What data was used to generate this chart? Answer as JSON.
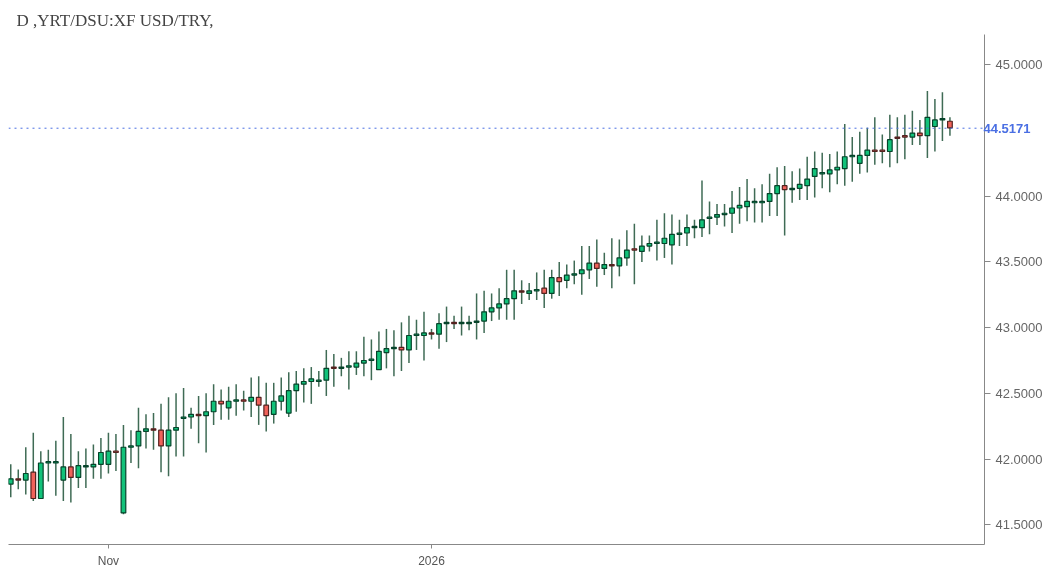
{
  "chart_data": {
    "type": "candlestick",
    "title": "D ,YRT/DSU:XF USD/TRY,",
    "categories": [
      null,
      null,
      null,
      null,
      null,
      null,
      null,
      null,
      null,
      null,
      null,
      null,
      null,
      "Nov",
      null,
      null,
      null,
      null,
      null,
      null,
      null,
      null,
      null,
      null,
      null,
      null,
      null,
      null,
      null,
      null,
      null,
      null,
      null,
      null,
      null,
      null,
      null,
      null,
      null,
      null,
      null,
      null,
      null,
      null,
      null,
      null,
      null,
      null,
      null,
      null,
      null,
      null,
      null,
      null,
      null,
      null,
      "2026",
      null,
      null,
      null,
      null,
      null,
      null,
      null,
      null,
      null,
      null,
      null,
      null,
      null,
      null,
      null,
      null,
      null,
      null,
      null,
      null,
      null,
      null,
      null,
      null,
      null,
      null,
      null,
      null,
      null,
      null,
      null,
      null,
      null,
      null,
      null,
      null,
      null,
      null,
      null,
      null,
      null,
      null,
      null,
      null,
      null,
      null,
      null,
      null,
      null,
      null,
      null,
      null,
      null,
      null,
      null,
      null,
      null,
      null,
      null,
      null,
      null,
      null,
      null,
      null,
      null,
      null,
      null,
      null,
      null
    ],
    "ohlc": [
      [
        41.81,
        41.96,
        41.71,
        41.85
      ],
      [
        41.85,
        41.92,
        41.77,
        41.84
      ],
      [
        41.84,
        42.09,
        41.73,
        41.89
      ],
      [
        41.9,
        42.2,
        41.68,
        41.7
      ],
      [
        41.7,
        42.06,
        41.7,
        41.97
      ],
      [
        41.97,
        42.07,
        41.83,
        41.98
      ],
      [
        41.97,
        42.14,
        41.72,
        41.98
      ],
      [
        41.84,
        42.32,
        41.68,
        41.94
      ],
      [
        41.94,
        42.19,
        41.67,
        41.86
      ],
      [
        41.86,
        42.06,
        41.78,
        41.95
      ],
      [
        41.94,
        42.08,
        41.78,
        41.95
      ],
      [
        41.94,
        42.11,
        41.85,
        41.96
      ],
      [
        41.96,
        42.16,
        41.85,
        42.05
      ],
      [
        41.96,
        42.2,
        41.89,
        42.06
      ],
      [
        42.06,
        42.19,
        41.91,
        42.05
      ],
      [
        41.59,
        42.26,
        41.58,
        42.09
      ],
      [
        42.09,
        42.22,
        41.97,
        42.1
      ],
      [
        42.1,
        42.39,
        41.93,
        42.21
      ],
      [
        42.21,
        42.34,
        42.08,
        42.23
      ],
      [
        42.23,
        42.35,
        42.07,
        42.22
      ],
      [
        42.22,
        42.42,
        41.9,
        42.1
      ],
      [
        42.1,
        42.47,
        41.87,
        42.22
      ],
      [
        42.22,
        42.5,
        42.02,
        42.24
      ],
      [
        42.31,
        42.54,
        42.02,
        42.32
      ],
      [
        42.32,
        42.39,
        42.23,
        42.34
      ],
      [
        42.34,
        42.48,
        42.12,
        42.33
      ],
      [
        42.33,
        42.5,
        42.05,
        42.36
      ],
      [
        42.36,
        42.57,
        42.26,
        42.44
      ],
      [
        42.44,
        42.53,
        42.3,
        42.42
      ],
      [
        42.39,
        42.55,
        42.3,
        42.44
      ],
      [
        42.44,
        42.57,
        42.33,
        42.45
      ],
      [
        42.45,
        42.52,
        42.37,
        42.44
      ],
      [
        42.44,
        42.62,
        42.32,
        42.47
      ],
      [
        42.47,
        42.63,
        42.26,
        42.41
      ],
      [
        42.41,
        42.58,
        42.21,
        42.33
      ],
      [
        42.34,
        42.58,
        42.27,
        42.44
      ],
      [
        42.44,
        42.62,
        42.37,
        42.48
      ],
      [
        42.35,
        42.66,
        42.32,
        42.52
      ],
      [
        42.52,
        42.67,
        42.36,
        42.57
      ],
      [
        42.57,
        42.69,
        42.43,
        42.59
      ],
      [
        42.59,
        42.7,
        42.42,
        42.61
      ],
      [
        42.59,
        42.67,
        42.55,
        42.6
      ],
      [
        42.6,
        42.83,
        42.48,
        42.69
      ],
      [
        42.7,
        42.8,
        42.55,
        42.69
      ],
      [
        42.69,
        42.77,
        42.63,
        42.7
      ],
      [
        42.7,
        42.82,
        42.53,
        42.71
      ],
      [
        42.7,
        42.82,
        42.64,
        42.73
      ],
      [
        42.73,
        42.93,
        42.63,
        42.75
      ],
      [
        42.75,
        42.91,
        42.6,
        42.76
      ],
      [
        42.68,
        42.97,
        42.68,
        42.82
      ],
      [
        42.81,
        42.99,
        42.69,
        42.84
      ],
      [
        42.84,
        42.98,
        42.63,
        42.85
      ],
      [
        42.85,
        43.04,
        42.67,
        42.83
      ],
      [
        42.83,
        43.09,
        42.73,
        42.94
      ],
      [
        42.94,
        43.06,
        42.83,
        42.95
      ],
      [
        42.94,
        43.12,
        42.75,
        42.96
      ],
      [
        42.96,
        42.99,
        42.91,
        42.95
      ],
      [
        42.95,
        43.11,
        42.84,
        43.03
      ],
      [
        43.03,
        43.16,
        42.89,
        43.04
      ],
      [
        43.04,
        43.09,
        42.99,
        43.03
      ],
      [
        43.03,
        43.16,
        42.94,
        43.04
      ],
      [
        43.03,
        43.09,
        42.98,
        43.04
      ],
      [
        43.04,
        43.26,
        42.91,
        43.05
      ],
      [
        43.05,
        43.28,
        42.96,
        43.12
      ],
      [
        43.12,
        43.26,
        43.05,
        43.15
      ],
      [
        43.15,
        43.3,
        43.06,
        43.18
      ],
      [
        43.18,
        43.44,
        43.06,
        43.22
      ],
      [
        43.22,
        43.44,
        43.06,
        43.28
      ],
      [
        43.28,
        43.36,
        43.18,
        43.27
      ],
      [
        43.26,
        43.34,
        43.21,
        43.28
      ],
      [
        43.28,
        43.42,
        43.21,
        43.29
      ],
      [
        43.3,
        43.44,
        43.15,
        43.26
      ],
      [
        43.26,
        43.44,
        43.22,
        43.38
      ],
      [
        43.38,
        43.5,
        43.24,
        43.35
      ],
      [
        43.36,
        43.48,
        43.3,
        43.4
      ],
      [
        43.4,
        43.51,
        43.33,
        43.41
      ],
      [
        43.41,
        43.62,
        43.25,
        43.44
      ],
      [
        43.44,
        43.62,
        43.37,
        43.49
      ],
      [
        43.49,
        43.67,
        43.31,
        43.45
      ],
      [
        43.45,
        43.57,
        43.4,
        43.48
      ],
      [
        43.48,
        43.68,
        43.3,
        43.47
      ],
      [
        43.47,
        43.67,
        43.39,
        43.53
      ],
      [
        43.53,
        43.74,
        43.47,
        43.59
      ],
      [
        43.6,
        43.79,
        43.33,
        43.59
      ],
      [
        43.58,
        43.7,
        43.5,
        43.62
      ],
      [
        43.62,
        43.7,
        43.58,
        43.64
      ],
      [
        43.64,
        43.82,
        43.51,
        43.65
      ],
      [
        43.64,
        43.87,
        43.53,
        43.68
      ],
      [
        43.63,
        43.86,
        43.48,
        43.71
      ],
      [
        43.71,
        43.82,
        43.62,
        43.72
      ],
      [
        43.72,
        43.86,
        43.62,
        43.76
      ],
      [
        43.76,
        43.82,
        43.68,
        43.77
      ],
      [
        43.76,
        44.12,
        43.69,
        43.82
      ],
      [
        43.83,
        43.96,
        43.71,
        43.84
      ],
      [
        43.84,
        43.94,
        43.78,
        43.86
      ],
      [
        43.86,
        43.94,
        43.77,
        43.87
      ],
      [
        43.87,
        44.04,
        43.72,
        43.91
      ],
      [
        43.91,
        44.07,
        43.79,
        43.93
      ],
      [
        43.92,
        44.13,
        43.81,
        43.96
      ],
      [
        43.95,
        44.06,
        43.8,
        43.96
      ],
      [
        43.95,
        44.09,
        43.8,
        43.96
      ],
      [
        43.96,
        44.17,
        43.85,
        44.02
      ],
      [
        44.02,
        44.22,
        43.85,
        44.08
      ],
      [
        44.08,
        44.23,
        43.7,
        44.05
      ],
      [
        44.05,
        44.19,
        43.95,
        44.06
      ],
      [
        44.06,
        44.21,
        43.97,
        44.09
      ],
      [
        44.08,
        44.3,
        43.97,
        44.13
      ],
      [
        44.15,
        44.34,
        43.99,
        44.21
      ],
      [
        44.17,
        44.33,
        44.06,
        44.18
      ],
      [
        44.17,
        44.32,
        44.03,
        44.2
      ],
      [
        44.2,
        44.34,
        44.09,
        44.22
      ],
      [
        44.21,
        44.55,
        44.08,
        44.3
      ],
      [
        44.3,
        44.45,
        44.11,
        44.31
      ],
      [
        44.25,
        44.49,
        44.17,
        44.31
      ],
      [
        44.31,
        44.52,
        44.18,
        44.35
      ],
      [
        44.35,
        44.6,
        44.24,
        44.34
      ],
      [
        44.35,
        44.47,
        44.25,
        44.34
      ],
      [
        44.34,
        44.62,
        44.22,
        44.43
      ],
      [
        44.45,
        44.6,
        44.25,
        44.44
      ],
      [
        44.46,
        44.62,
        44.28,
        44.45
      ],
      [
        44.45,
        44.65,
        44.39,
        44.48
      ],
      [
        44.48,
        44.58,
        44.39,
        44.46
      ],
      [
        44.46,
        44.8,
        44.29,
        44.6
      ],
      [
        44.53,
        44.74,
        44.34,
        44.58
      ],
      [
        44.58,
        44.79,
        44.42,
        44.59
      ],
      [
        44.57,
        44.6,
        44.46,
        44.52
      ]
    ],
    "colors": [
      "#12c27a",
      "#f0625a",
      "#12c27a",
      "#f0625a",
      "#12c27a",
      "#12c27a",
      "#12c27a",
      "#12c27a",
      "#f0625a",
      "#12c27a",
      "#12c27a",
      "#12c27a",
      "#12c27a",
      "#12c27a",
      "#f0625a",
      "#12c27a",
      "#12c27a",
      "#12c27a",
      "#12c27a",
      "#f0625a",
      "#f0625a",
      "#12c27a",
      "#12c27a",
      "#12c27a",
      "#12c27a",
      "#f0625a",
      "#12c27a",
      "#12c27a",
      "#f0625a",
      "#12c27a",
      "#12c27a",
      "#f0625a",
      "#12c27a",
      "#f0625a",
      "#f0625a",
      "#12c27a",
      "#12c27a",
      "#12c27a",
      "#12c27a",
      "#12c27a",
      "#12c27a",
      "#12c27a",
      "#12c27a",
      "#f0625a",
      "#12c27a",
      "#12c27a",
      "#12c27a",
      "#12c27a",
      "#12c27a",
      "#12c27a",
      "#12c27a",
      "#12c27a",
      "#f0625a",
      "#12c27a",
      "#12c27a",
      "#12c27a",
      "#f0625a",
      "#12c27a",
      "#12c27a",
      "#f0625a",
      "#12c27a",
      "#12c27a",
      "#12c27a",
      "#12c27a",
      "#12c27a",
      "#12c27a",
      "#12c27a",
      "#12c27a",
      "#f0625a",
      "#12c27a",
      "#12c27a",
      "#f0625a",
      "#12c27a",
      "#f0625a",
      "#12c27a",
      "#12c27a",
      "#12c27a",
      "#12c27a",
      "#f0625a",
      "#12c27a",
      "#f0625a",
      "#12c27a",
      "#12c27a",
      "#f0625a",
      "#12c27a",
      "#12c27a",
      "#12c27a",
      "#12c27a",
      "#12c27a",
      "#12c27a",
      "#12c27a",
      "#12c27a",
      "#12c27a",
      "#12c27a",
      "#12c27a",
      "#12c27a",
      "#12c27a",
      "#12c27a",
      "#12c27a",
      "#12c27a",
      "#12c27a",
      "#12c27a",
      "#12c27a",
      "#f0625a",
      "#12c27a",
      "#12c27a",
      "#12c27a",
      "#12c27a",
      "#12c27a",
      "#12c27a",
      "#12c27a",
      "#12c27a",
      "#12c27a",
      "#12c27a",
      "#12c27a",
      "#f0625a",
      "#f0625a",
      "#12c27a",
      "#f0625a",
      "#f0625a",
      "#12c27a",
      "#f0625a",
      "#12c27a",
      "#12c27a",
      "#12c27a",
      "#f0625a"
    ],
    "ylim": [
      41.35,
      45.23
    ],
    "yticks": [
      {
        "value": 41.5,
        "label": "41.5000"
      },
      {
        "value": 42.0,
        "label": "42.0000"
      },
      {
        "value": 42.5,
        "label": "42.5000"
      },
      {
        "value": 43.0,
        "label": "43.0000"
      },
      {
        "value": 43.5,
        "label": "43.5000"
      },
      {
        "value": 44.0,
        "label": "44.0000"
      },
      {
        "value": 45.0,
        "label": "45.0000"
      }
    ],
    "ref_lines": [
      {
        "axis": "y",
        "value": 44.5171,
        "label": "44.5171",
        "color": "#4a6fe3",
        "line_style": "dotted"
      }
    ],
    "grid": false
  }
}
